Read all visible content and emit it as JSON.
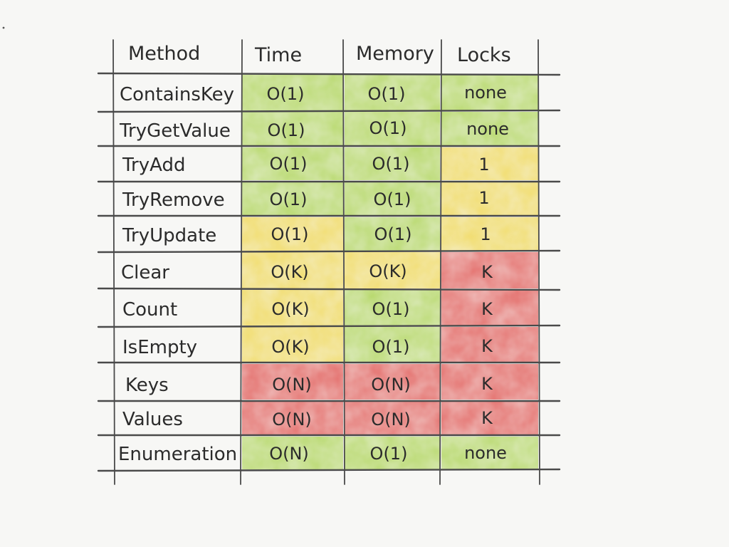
{
  "table": {
    "headers": [
      "Method",
      "Time",
      "Memory",
      "Locks"
    ],
    "rows": [
      {
        "method": "ContainsKey",
        "time": "O(1)",
        "memory": "O(1)",
        "locks": "none",
        "colors": [
          "green",
          "green",
          "green"
        ]
      },
      {
        "method": "TryGetValue",
        "time": "O(1)",
        "memory": "O(1)",
        "locks": "none",
        "colors": [
          "green",
          "green",
          "green"
        ]
      },
      {
        "method": "TryAdd",
        "time": "O(1)",
        "memory": "O(1)",
        "locks": "1",
        "colors": [
          "green",
          "green",
          "yellow"
        ]
      },
      {
        "method": "TryRemove",
        "time": "O(1)",
        "memory": "O(1)",
        "locks": "1",
        "colors": [
          "green",
          "green",
          "yellow"
        ]
      },
      {
        "method": "TryUpdate",
        "time": "O(1)",
        "memory": "O(1)",
        "locks": "1",
        "colors": [
          "yellow",
          "green",
          "yellow"
        ]
      },
      {
        "method": "Clear",
        "time": "O(K)",
        "memory": "O(K)",
        "locks": "K",
        "colors": [
          "yellow",
          "yellow",
          "red"
        ]
      },
      {
        "method": "Count",
        "time": "O(K)",
        "memory": "O(1)",
        "locks": "K",
        "colors": [
          "yellow",
          "green",
          "red"
        ]
      },
      {
        "method": "IsEmpty",
        "time": "O(K)",
        "memory": "O(1)",
        "locks": "K",
        "colors": [
          "yellow",
          "green",
          "red"
        ]
      },
      {
        "method": "Keys",
        "time": "O(N)",
        "memory": "O(N)",
        "locks": "K",
        "colors": [
          "red",
          "red",
          "red"
        ]
      },
      {
        "method": "Values",
        "time": "O(N)",
        "memory": "O(N)",
        "locks": "K",
        "colors": [
          "red",
          "red",
          "red"
        ]
      },
      {
        "method": "Enumeration",
        "time": "O(N)",
        "memory": "O(1)",
        "locks": "none",
        "colors": [
          "green",
          "green",
          "green"
        ]
      }
    ]
  },
  "palette": {
    "green": "#b8d96e",
    "yellow": "#f1dc6a",
    "red": "#e46f6c",
    "background": "#f7f7f5"
  }
}
